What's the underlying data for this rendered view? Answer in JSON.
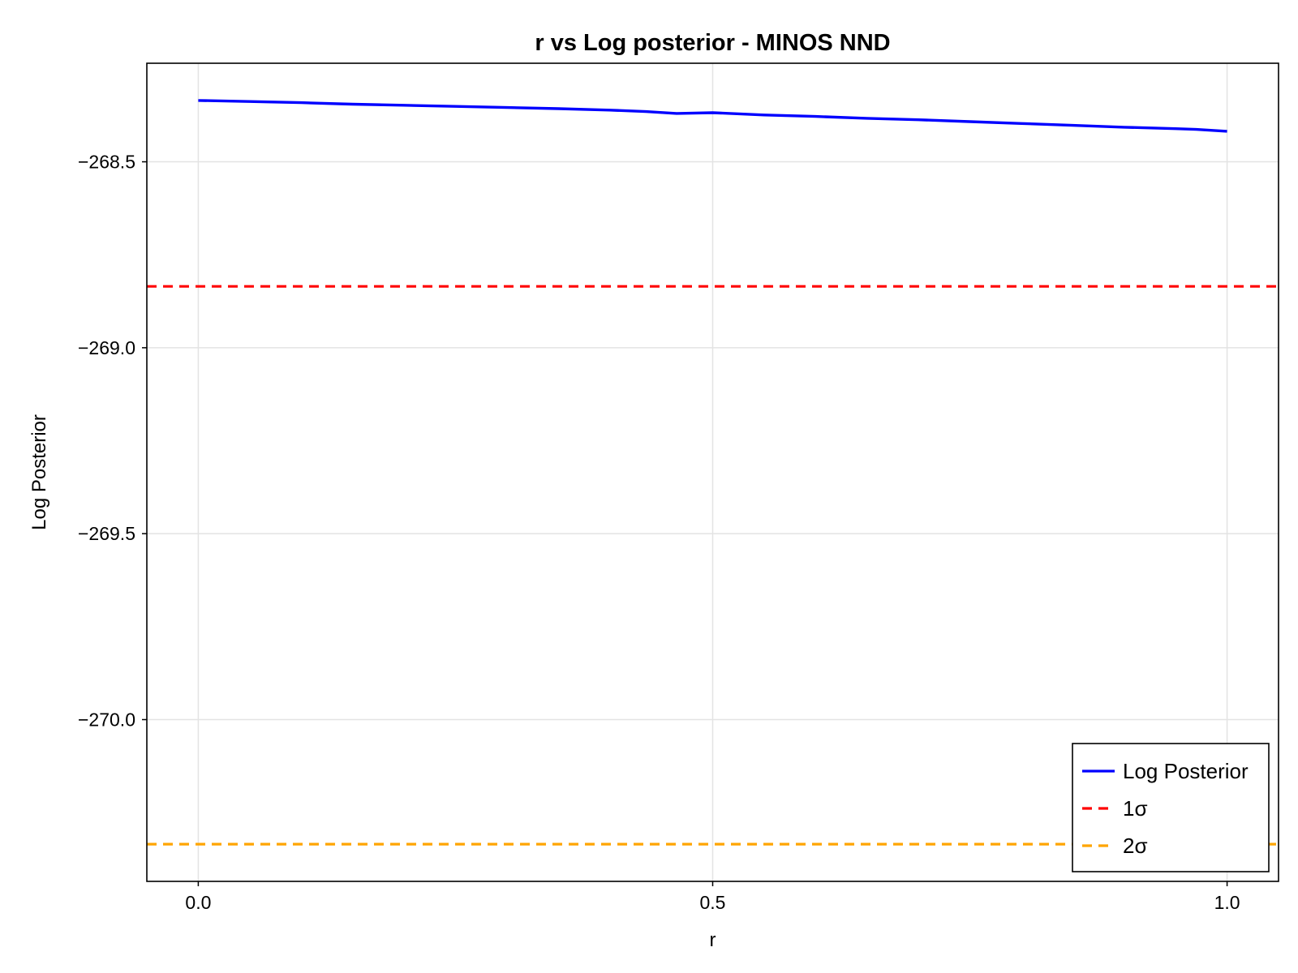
{
  "chart_data": {
    "type": "line",
    "title": "r vs Log posterior - MINOS NND",
    "xlabel": "r",
    "ylabel": "Log Posterior",
    "xlim": [
      -0.05,
      1.05
    ],
    "ylim": [
      -270.435,
      -268.235
    ],
    "x_ticks": [
      0.0,
      0.5,
      1.0
    ],
    "x_tick_labels": [
      "0.0",
      "0.5",
      "1.0"
    ],
    "y_ticks": [
      -268.5,
      -269.0,
      -269.5,
      -270.0
    ],
    "y_tick_labels": [
      "−268.5",
      "−269.0",
      "−269.5",
      "−270.0"
    ],
    "grid": true,
    "legend_position": "bottom-right",
    "series": [
      {
        "name": "Log Posterior",
        "style": "solid",
        "color": "#0000ff",
        "x": [
          0.0,
          0.05,
          0.1,
          0.15,
          0.2,
          0.25,
          0.3,
          0.35,
          0.4,
          0.435,
          0.465,
          0.5,
          0.55,
          0.6,
          0.65,
          0.7,
          0.75,
          0.8,
          0.85,
          0.9,
          0.95,
          0.97,
          1.0
        ],
        "values": [
          -268.335,
          -268.338,
          -268.341,
          -268.345,
          -268.348,
          -268.351,
          -268.354,
          -268.357,
          -268.361,
          -268.365,
          -268.37,
          -268.368,
          -268.374,
          -268.378,
          -268.383,
          -268.387,
          -268.392,
          -268.397,
          -268.402,
          -268.407,
          -268.411,
          -268.413,
          -268.418
        ]
      },
      {
        "name": "1σ",
        "style": "dashed",
        "color": "#ff0000",
        "y_constant": -268.835
      },
      {
        "name": "2σ",
        "style": "dashed",
        "color": "#ffa500",
        "y_constant": -270.335
      }
    ]
  }
}
